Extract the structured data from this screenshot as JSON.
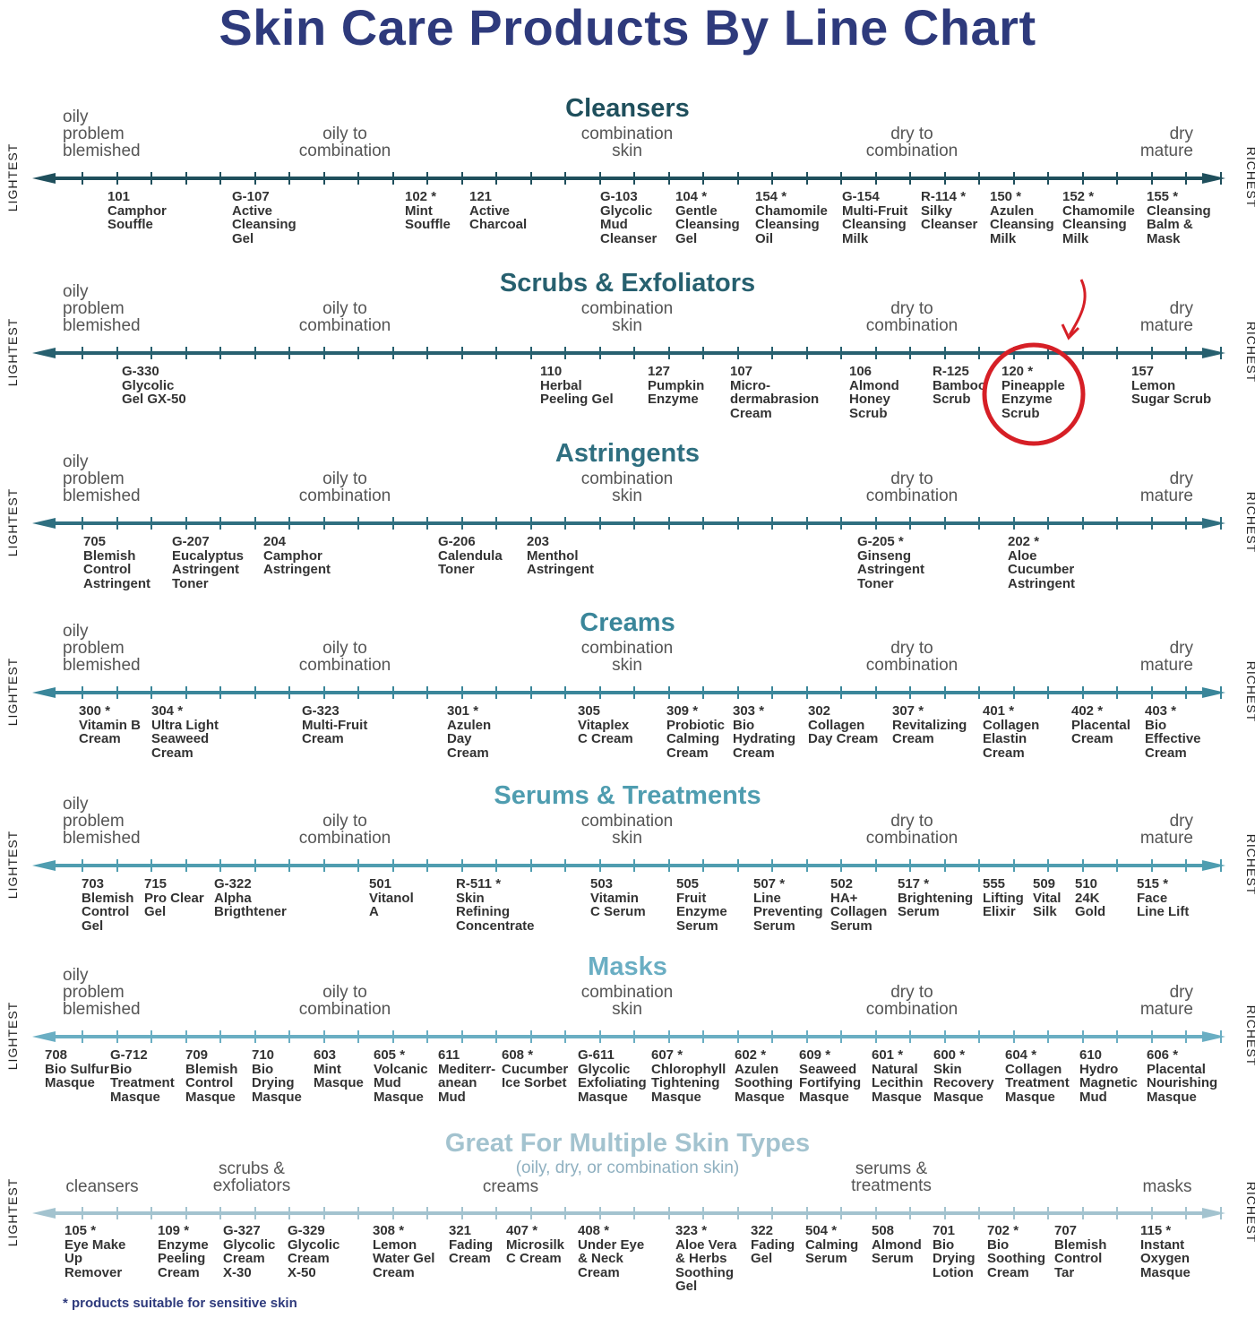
{
  "title": "Skin Care Products By Line Chart",
  "side_labels": {
    "left": "LIGHTEST",
    "right": "RICHEST"
  },
  "zones": {
    "oily": "oily\nproblem\nblemished",
    "oily_combo": "oily to\ncombination",
    "combo": "combination\nskin",
    "dry_combo": "dry to\ncombination",
    "dry": "dry\nmature"
  },
  "sections": [
    {
      "title": "Cleansers",
      "color": "#1f4f5c",
      "items": [
        {
          "code": "101",
          "star": "",
          "name": "Camphor\nSouffle"
        },
        {
          "code": "G-107",
          "star": "",
          "name": "Active\nCleansing\nGel"
        },
        {
          "code": "102",
          "star": "*",
          "name": "Mint\nSouffle"
        },
        {
          "code": "121",
          "star": "",
          "name": "Active\nCharcoal"
        },
        {
          "code": "G-103",
          "star": "",
          "name": "Glycolic\nMud\nCleanser"
        },
        {
          "code": "104",
          "star": "*",
          "name": "Gentle\nCleansing\nGel"
        },
        {
          "code": "154",
          "star": "*",
          "name": "Chamomile\nCleansing\nOil"
        },
        {
          "code": "G-154",
          "star": "",
          "name": "Multi-Fruit\nCleansing\nMilk"
        },
        {
          "code": "R-114",
          "star": "*",
          "name": "Silky\nCleanser"
        },
        {
          "code": "150",
          "star": "*",
          "name": "Azulen\nCleansing\nMilk"
        },
        {
          "code": "152",
          "star": "*",
          "name": "Chamomile\nCleansing\nMilk"
        },
        {
          "code": "155",
          "star": "*",
          "name": "Cleansing\nBalm &\nMask"
        }
      ]
    },
    {
      "title": "Scrubs & Exfoliators",
      "color": "#27606f",
      "items": [
        {
          "code": "G-330",
          "star": "",
          "name": "Glycolic\nGel GX-50"
        },
        {
          "code": "110",
          "star": "",
          "name": "Herbal\nPeeling Gel"
        },
        {
          "code": "127",
          "star": "",
          "name": "Pumpkin\nEnzyme"
        },
        {
          "code": "107",
          "star": "",
          "name": "Micro-\ndermabrasion\nCream"
        },
        {
          "code": "106",
          "star": "",
          "name": "Almond\nHoney\nScrub"
        },
        {
          "code": "R-125",
          "star": "",
          "name": "Bamboo\nScrub"
        },
        {
          "code": "120",
          "star": "*",
          "name": "Pineapple\nEnzyme\nScrub"
        },
        {
          "code": "157",
          "star": "",
          "name": "Lemon\nSugar Scrub"
        }
      ]
    },
    {
      "title": "Astringents",
      "color": "#2f6f80",
      "items": [
        {
          "code": "705",
          "star": "",
          "name": "Blemish\nControl\nAstringent"
        },
        {
          "code": "G-207",
          "star": "",
          "name": "Eucalyptus\nAstringent\nToner"
        },
        {
          "code": "204",
          "star": "",
          "name": "Camphor\nAstringent"
        },
        {
          "code": "G-206",
          "star": "",
          "name": "Calendula\nToner"
        },
        {
          "code": "203",
          "star": "",
          "name": "Menthol\nAstringent"
        },
        {
          "code": "G-205",
          "star": "*",
          "name": "Ginseng\nAstringent\nToner"
        },
        {
          "code": "202",
          "star": "*",
          "name": "Aloe\nCucumber\nAstringent"
        }
      ]
    },
    {
      "title": "Creams",
      "color": "#3a869a",
      "items": [
        {
          "code": "300",
          "star": "*",
          "name": "Vitamin B\nCream"
        },
        {
          "code": "304",
          "star": "*",
          "name": "Ultra Light\nSeaweed\nCream"
        },
        {
          "code": "G-323",
          "star": "",
          "name": "Multi-Fruit\nCream"
        },
        {
          "code": "301",
          "star": "*",
          "name": "Azulen\nDay\nCream"
        },
        {
          "code": "305",
          "star": "",
          "name": "Vitaplex\nC Cream"
        },
        {
          "code": "309",
          "star": "*",
          "name": "Probiotic\nCalming\nCream"
        },
        {
          "code": "303",
          "star": "*",
          "name": "Bio\nHydrating\nCream"
        },
        {
          "code": "302",
          "star": "",
          "name": "Collagen\nDay Cream"
        },
        {
          "code": "307",
          "star": "*",
          "name": "Revitalizing\nCream"
        },
        {
          "code": "401",
          "star": "*",
          "name": "Collagen\nElastin\nCream"
        },
        {
          "code": "402",
          "star": "*",
          "name": "Placental\nCream"
        },
        {
          "code": "403",
          "star": "*",
          "name": "Bio\nEffective\nCream"
        }
      ]
    },
    {
      "title": "Serums & Treatments",
      "color": "#4f9db0",
      "items": [
        {
          "code": "703",
          "star": "",
          "name": "Blemish\nControl\nGel"
        },
        {
          "code": "715",
          "star": "",
          "name": "Pro Clear\nGel"
        },
        {
          "code": "G-322",
          "star": "",
          "name": "Alpha\nBrigthtener"
        },
        {
          "code": "501",
          "star": "",
          "name": "Vitanol\nA"
        },
        {
          "code": "R-511",
          "star": "*",
          "name": "Skin\nRefining\nConcentrate"
        },
        {
          "code": "503",
          "star": "",
          "name": "Vitamin\nC Serum"
        },
        {
          "code": "505",
          "star": "",
          "name": "Fruit\nEnzyme\nSerum"
        },
        {
          "code": "507",
          "star": "*",
          "name": "Line\nPreventing\nSerum"
        },
        {
          "code": "502",
          "star": "",
          "name": "HA+\nCollagen\nSerum"
        },
        {
          "code": "517",
          "star": "*",
          "name": "Brightening\nSerum"
        },
        {
          "code": "555",
          "star": "",
          "name": "Lifting\nElixir"
        },
        {
          "code": "509",
          "star": "",
          "name": "Vital\nSilk"
        },
        {
          "code": "510",
          "star": "",
          "name": "24K\nGold"
        },
        {
          "code": "515",
          "star": "*",
          "name": "Face\nLine Lift"
        }
      ]
    },
    {
      "title": "Masks",
      "color": "#6aaec3",
      "items": [
        {
          "code": "708",
          "star": "",
          "name": "Bio Sulfur\nMasque"
        },
        {
          "code": "G-712",
          "star": "",
          "name": "Bio\nTreatment\nMasque"
        },
        {
          "code": "709",
          "star": "",
          "name": "Blemish\nControl\nMasque"
        },
        {
          "code": "710",
          "star": "",
          "name": "Bio\nDrying\nMasque"
        },
        {
          "code": "603",
          "star": "",
          "name": "Mint\nMasque"
        },
        {
          "code": "605",
          "star": "*",
          "name": "Volcanic\nMud\nMasque"
        },
        {
          "code": "611",
          "star": "",
          "name": "Mediterr-\nanean\nMud"
        },
        {
          "code": "608",
          "star": "*",
          "name": "Cucumber\nIce Sorbet"
        },
        {
          "code": "G-611",
          "star": "",
          "name": "Glycolic\nExfoliating\nMasque"
        },
        {
          "code": "607",
          "star": "*",
          "name": "Chlorophyll\nTightening\nMasque"
        },
        {
          "code": "602",
          "star": "*",
          "name": "Azulen\nSoothing\nMasque"
        },
        {
          "code": "609",
          "star": "*",
          "name": "Seaweed\nFortifying\nMasque"
        },
        {
          "code": "601",
          "star": "*",
          "name": "Natural\nLecithin\nMasque"
        },
        {
          "code": "600",
          "star": "*",
          "name": "Skin\nRecovery\nMasque"
        },
        {
          "code": "604",
          "star": "*",
          "name": "Collagen\nTreatment\nMasque"
        },
        {
          "code": "610",
          "star": "",
          "name": "Hydro\nMagnetic\nMud"
        },
        {
          "code": "606",
          "star": "*",
          "name": "Placental\nNourishing\nMasque"
        }
      ]
    }
  ],
  "multi": {
    "title": "Great For Multiple Skin Types",
    "subtitle": "(oily, dry, or combination skin)",
    "color": "#a3c3cf",
    "zones": {
      "cleansers": "cleansers",
      "scrubs": "scrubs &\nexfoliators",
      "creams": "creams",
      "serums": "serums &\ntreatments",
      "masks": "masks"
    },
    "items": [
      {
        "code": "105",
        "star": "*",
        "name": "Eye Make\nUp\nRemover"
      },
      {
        "code": "109",
        "star": "*",
        "name": "Enzyme\nPeeling\nCream"
      },
      {
        "code": "G-327",
        "star": "",
        "name": "Glycolic\nCream\nX-30"
      },
      {
        "code": "G-329",
        "star": "",
        "name": "Glycolic\nCream\nX-50"
      },
      {
        "code": "308",
        "star": "*",
        "name": "Lemon\nWater Gel\nCream"
      },
      {
        "code": "321",
        "star": "",
        "name": "Fading\nCream"
      },
      {
        "code": "407",
        "star": "*",
        "name": "Microsilk\nC Cream"
      },
      {
        "code": "408",
        "star": "*",
        "name": "Under Eye\n& Neck\nCream"
      },
      {
        "code": "323",
        "star": "*",
        "name": "Aloe Vera\n& Herbs\nSoothing\nGel"
      },
      {
        "code": "322",
        "star": "",
        "name": "Fading\nGel"
      },
      {
        "code": "504",
        "star": "*",
        "name": "Calming\nSerum"
      },
      {
        "code": "508",
        "star": "",
        "name": "Almond\nSerum"
      },
      {
        "code": "701",
        "star": "",
        "name": "Bio\nDrying\nLotion"
      },
      {
        "code": "702",
        "star": "*",
        "name": "Bio\nSoothing\nCream"
      },
      {
        "code": "707",
        "star": "",
        "name": "Blemish\nControl\nTar"
      },
      {
        "code": "115",
        "star": "*",
        "name": "Instant\nOxygen\nMasque"
      }
    ]
  },
  "footnote": "* products suitable for sensitive skin",
  "highlight": {
    "section": "Scrubs & Exfoliators",
    "item": "120",
    "color": "#d61f26"
  }
}
